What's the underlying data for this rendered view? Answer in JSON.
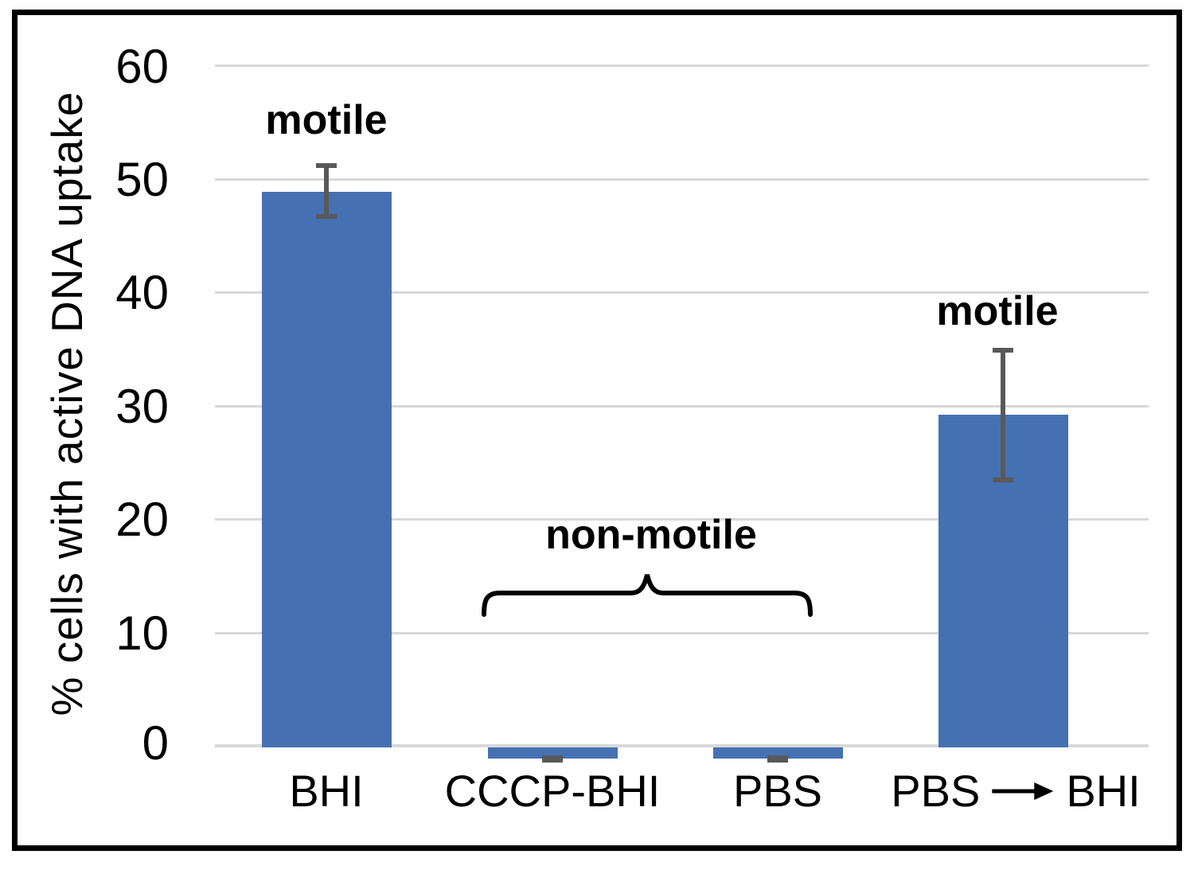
{
  "figure": {
    "background_color": "#ffffff",
    "border_color": "#000000"
  },
  "chart_data": {
    "type": "bar",
    "title": "",
    "xlabel": "",
    "ylabel": "% cells with active DNA uptake",
    "categories": [
      "BHI",
      "CCCP-BHI",
      "PBS",
      "PBS → BHI"
    ],
    "categories_last_parts": [
      "PBS",
      "BHI"
    ],
    "values": [
      49,
      -1,
      -1,
      29.3
    ],
    "error_bars": {
      "upper": [
        51.3,
        -0.9,
        -0.9,
        35.0
      ],
      "lower": [
        46.8,
        -1.1,
        -1.1,
        23.6
      ]
    },
    "ytick_labels": [
      "60",
      "50",
      "40",
      "30",
      "20",
      "10",
      "0"
    ],
    "ytick_values": [
      60,
      50,
      40,
      30,
      20,
      10,
      0
    ],
    "ylim": [
      -2,
      60
    ],
    "grid": true,
    "legend": false,
    "bar_color": "#4571b3",
    "error_bar_color": "#595959",
    "gridline_color": "#d8d8d8",
    "annotations": {
      "motile_left": "motile",
      "motile_right": "motile",
      "non_motile": "non-motile"
    }
  }
}
